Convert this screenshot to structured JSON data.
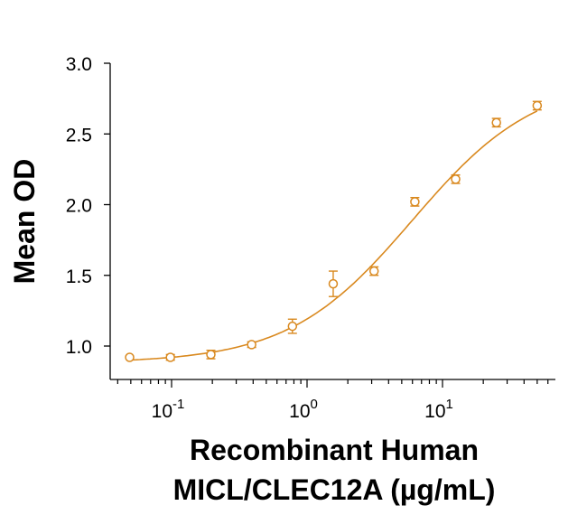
{
  "chart_data": {
    "type": "scatter",
    "title": "",
    "xlabel_line1": "Recombinant Human",
    "xlabel_line2": "MICL/CLEC12A (µg/mL)",
    "ylabel": "Mean OD",
    "x_scale": "log",
    "xlim": [
      0.03,
      70
    ],
    "ylim": [
      0.85,
      3.0
    ],
    "y_ticks": [
      "1.0",
      "1.5",
      "2.0",
      "2.5",
      "3.0"
    ],
    "y_tick_values": [
      1.0,
      1.5,
      2.0,
      2.5,
      3.0
    ],
    "x_ticks": [
      {
        "value": 0.1,
        "base": "10",
        "exp": "-1"
      },
      {
        "value": 1,
        "base": "10",
        "exp": "0"
      },
      {
        "value": 10,
        "base": "10",
        "exp": "1"
      }
    ],
    "grid": false,
    "legend": "none",
    "color": "#D9891F",
    "series": [
      {
        "x": [
          0.049,
          0.098,
          0.195,
          0.39,
          0.78,
          1.56,
          3.125,
          6.25,
          12.5,
          25,
          50
        ],
        "y": [
          0.92,
          0.92,
          0.94,
          1.01,
          1.14,
          1.44,
          1.53,
          2.02,
          2.18,
          2.58,
          2.7
        ],
        "err": [
          0.0,
          0.02,
          0.03,
          0.02,
          0.05,
          0.09,
          0.03,
          0.03,
          0.03,
          0.03,
          0.03
        ]
      }
    ],
    "fit": {
      "type": "4PL",
      "bottom": 0.88,
      "top": 2.9,
      "ec50": 6.0,
      "hill": 0.95
    }
  }
}
